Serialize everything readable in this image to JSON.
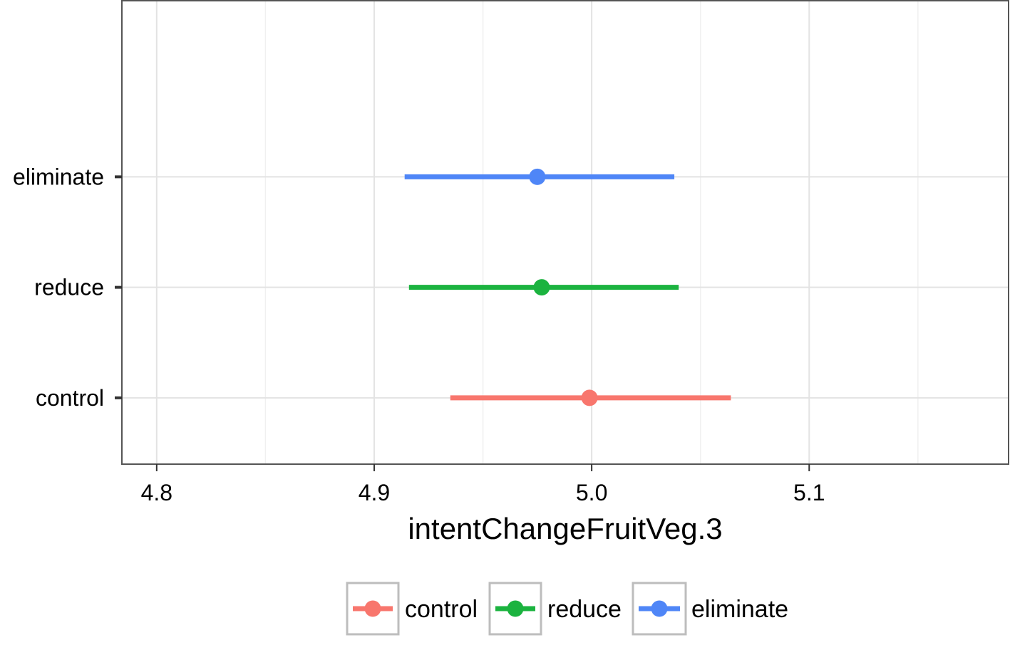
{
  "chart_data": {
    "type": "scatter",
    "title": "",
    "xlabel": "intentChangeFruitVeg.3",
    "ylabel": "",
    "xlim": [
      4.784,
      5.192
    ],
    "x_ticks": [
      "4.8",
      "4.9",
      "5.0",
      "5.1"
    ],
    "categories": [
      "control",
      "reduce",
      "eliminate"
    ],
    "grid": true,
    "legend_position": "bottom",
    "series": [
      {
        "name": "control",
        "color": "#F8766D",
        "point": 4.999,
        "ci_low": 4.935,
        "ci_high": 5.064
      },
      {
        "name": "reduce",
        "color": "#1BB33F",
        "point": 4.977,
        "ci_low": 4.916,
        "ci_high": 5.04
      },
      {
        "name": "eliminate",
        "color": "#4F86F7",
        "point": 4.975,
        "ci_low": 4.914,
        "ci_high": 5.038
      }
    ]
  }
}
